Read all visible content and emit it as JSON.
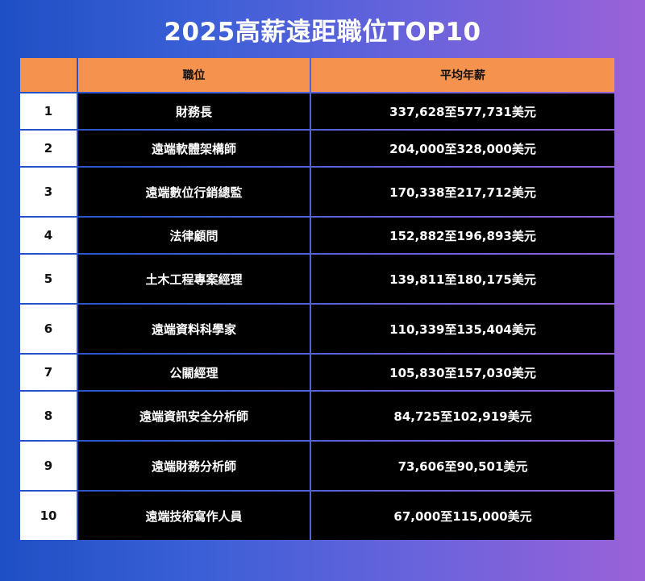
{
  "title": "2025高薪遠距職位TOP10",
  "table": {
    "headers": [
      "",
      "職位",
      "平均年薪"
    ],
    "rows": [
      {
        "rank": "1",
        "position": "財務長",
        "salary": "337,628至577,731美元"
      },
      {
        "rank": "2",
        "position": "遠端軟體架構師",
        "salary": "204,000至328,000美元"
      },
      {
        "rank": "3",
        "position": "遠端數位行銷總監",
        "salary": "170,338至217,712美元"
      },
      {
        "rank": "4",
        "position": "法律顧問",
        "salary": "152,882至196,893美元"
      },
      {
        "rank": "5",
        "position": "土木工程專案經理",
        "salary": "139,811至180,175美元"
      },
      {
        "rank": "6",
        "position": "遠端資料科學家",
        "salary": "110,339至135,404美元"
      },
      {
        "rank": "7",
        "position": "公關經理",
        "salary": "105,830至157,030美元"
      },
      {
        "rank": "8",
        "position": "遠端資訊安全分析師",
        "salary": "84,725至102,919美元"
      },
      {
        "rank": "9",
        "position": "遠端財務分析師",
        "salary": "73,606至90,501美元"
      },
      {
        "rank": "10",
        "position": "遠端技術寫作人員",
        "salary": "67,000至115,000美元"
      }
    ]
  },
  "colors": {
    "header": "#f5934e",
    "rank_cell": "#ffffff",
    "data_cell": "#000000"
  }
}
